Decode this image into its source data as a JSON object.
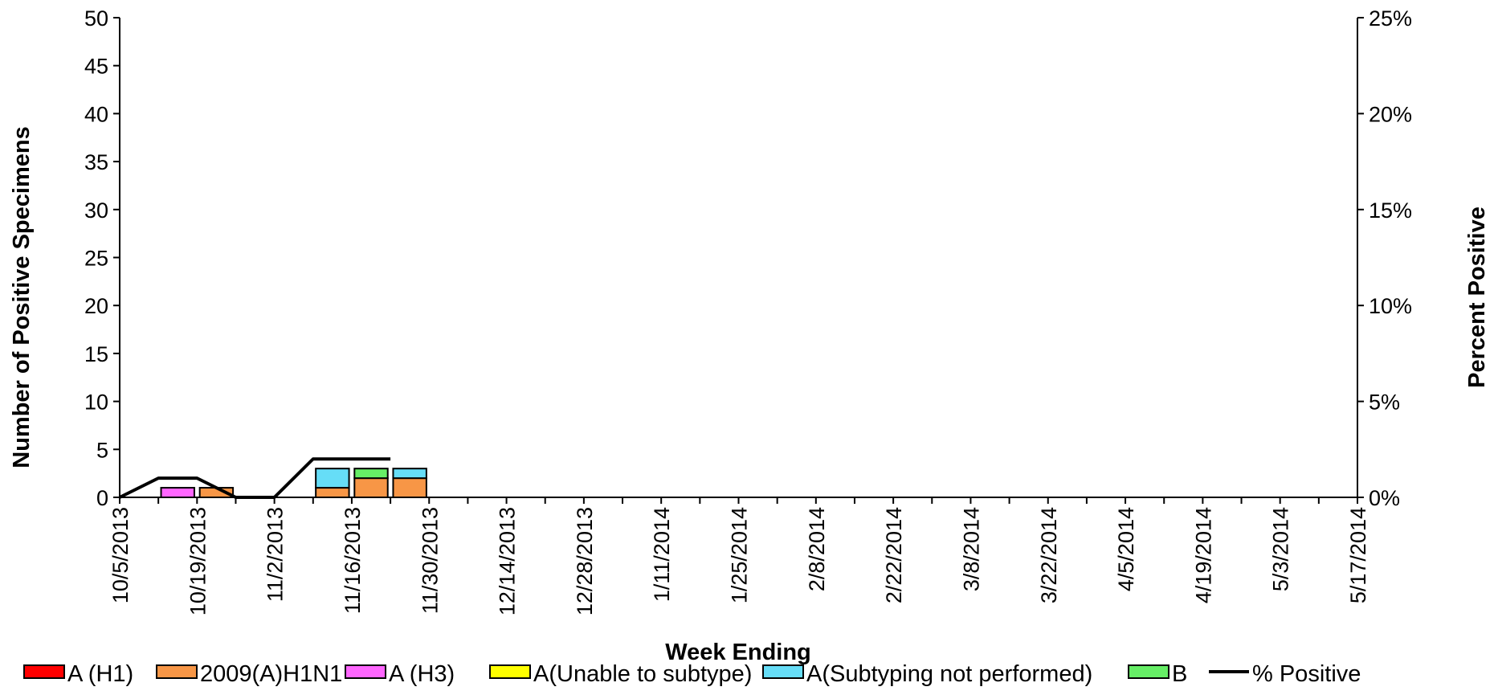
{
  "chart_data": {
    "type": "bar",
    "stacked": true,
    "xlabel": "Week Ending",
    "ylabel": "Number of  Positive Specimens",
    "y2label": "Percent Positive",
    "ylim": [
      0,
      50
    ],
    "y2lim": [
      0,
      25
    ],
    "yticks": [
      "0",
      "5",
      "10",
      "15",
      "20",
      "25",
      "30",
      "35",
      "40",
      "45",
      "50"
    ],
    "y2ticks": [
      "0%",
      "5%",
      "10%",
      "15%",
      "20%",
      "25%"
    ],
    "x_tick_labels": [
      "10/5/2013",
      "10/19/2013",
      "11/2/2013",
      "11/16/2013",
      "11/30/2013",
      "12/14/2013",
      "12/28/2013",
      "1/11/2014",
      "1/25/2014",
      "2/8/2014",
      "2/22/2014",
      "3/8/2014",
      "3/22/2014",
      "4/5/2014",
      "4/19/2014",
      "5/3/2014",
      "5/17/2014"
    ],
    "categories": [
      "10/5/2013",
      "10/12/2013",
      "10/19/2013",
      "10/26/2013",
      "11/2/2013",
      "11/9/2013",
      "11/16/2013",
      "11/23/2013",
      "11/30/2013",
      "12/7/2013",
      "12/14/2013",
      "12/21/2013",
      "12/28/2013",
      "1/4/2014",
      "1/11/2014",
      "1/18/2014",
      "1/25/2014",
      "2/1/2014",
      "2/8/2014",
      "2/15/2014",
      "2/22/2014",
      "3/1/2014",
      "3/8/2014",
      "3/15/2014",
      "3/22/2014",
      "3/29/2014",
      "4/5/2014",
      "4/12/2014",
      "4/19/2014",
      "4/26/2014",
      "5/3/2014",
      "5/10/2014",
      "5/17/2014"
    ],
    "series": [
      {
        "name": "A (H1)",
        "color": "#ff0000",
        "values": [
          0,
          0,
          0,
          0,
          0,
          0,
          0,
          0,
          0,
          0,
          0,
          0,
          0,
          0,
          0,
          0,
          0,
          0,
          0,
          0,
          0,
          0,
          0,
          0,
          0,
          0,
          0,
          0,
          0,
          0,
          0,
          0,
          0
        ]
      },
      {
        "name": "2009(A)H1N1",
        "color": "#f79646",
        "values": [
          0,
          0,
          1,
          0,
          0,
          1,
          2,
          2,
          0,
          0,
          0,
          0,
          0,
          0,
          0,
          0,
          0,
          0,
          0,
          0,
          0,
          0,
          0,
          0,
          0,
          0,
          0,
          0,
          0,
          0,
          0,
          0,
          0
        ]
      },
      {
        "name": "A (H3)",
        "color": "#ff66ff",
        "values": [
          0,
          1,
          0,
          0,
          0,
          0,
          0,
          0,
          0,
          0,
          0,
          0,
          0,
          0,
          0,
          0,
          0,
          0,
          0,
          0,
          0,
          0,
          0,
          0,
          0,
          0,
          0,
          0,
          0,
          0,
          0,
          0,
          0
        ]
      },
      {
        "name": "A(Unable to subtype)",
        "color": "#ffff00",
        "values": [
          0,
          0,
          0,
          0,
          0,
          0,
          0,
          0,
          0,
          0,
          0,
          0,
          0,
          0,
          0,
          0,
          0,
          0,
          0,
          0,
          0,
          0,
          0,
          0,
          0,
          0,
          0,
          0,
          0,
          0,
          0,
          0,
          0
        ]
      },
      {
        "name": "A(Subtyping not performed)",
        "color": "#66ddf7",
        "values": [
          0,
          0,
          0,
          0,
          0,
          2,
          0,
          1,
          0,
          0,
          0,
          0,
          0,
          0,
          0,
          0,
          0,
          0,
          0,
          0,
          0,
          0,
          0,
          0,
          0,
          0,
          0,
          0,
          0,
          0,
          0,
          0,
          0
        ]
      },
      {
        "name": "B",
        "color": "#66ee66",
        "values": [
          0,
          0,
          0,
          0,
          0,
          0,
          1,
          0,
          0,
          0,
          0,
          0,
          0,
          0,
          0,
          0,
          0,
          0,
          0,
          0,
          0,
          0,
          0,
          0,
          0,
          0,
          0,
          0,
          0,
          0,
          0,
          0,
          0
        ]
      }
    ],
    "line": {
      "name": "% Positive",
      "color": "#000000",
      "axis": "y2",
      "values": [
        0,
        1,
        1,
        0,
        0,
        2,
        2,
        2
      ]
    },
    "legend": "bottom",
    "grid": false
  }
}
